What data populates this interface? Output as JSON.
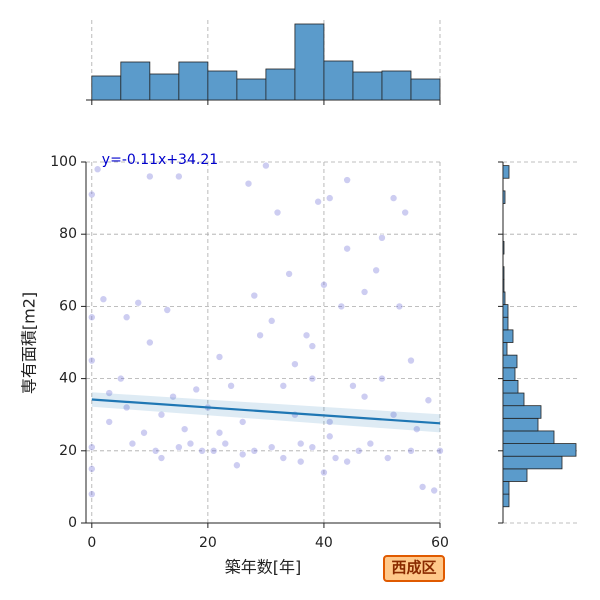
{
  "chart_data": {
    "type": "scatter",
    "xlabel": "築年数[年]",
    "ylabel": "専有面積[m2]",
    "xlim": [
      -1,
      60
    ],
    "ylim": [
      0,
      100
    ],
    "xticks": [
      0,
      20,
      40,
      60
    ],
    "yticks": [
      0,
      20,
      40,
      60,
      80,
      100
    ],
    "grid": true,
    "color": "#6f6fd8",
    "x": [
      1,
      0,
      2,
      0,
      0,
      0,
      0,
      0,
      3,
      3,
      5,
      6,
      6,
      7,
      8,
      9,
      10,
      10,
      11,
      12,
      12,
      13,
      14,
      15,
      16,
      17,
      18,
      19,
      20,
      21,
      22,
      23,
      24,
      25,
      26,
      27,
      28,
      28,
      29,
      30,
      31,
      31,
      32,
      33,
      34,
      35,
      35,
      36,
      37,
      38,
      38,
      39,
      40,
      40,
      41,
      41,
      42,
      43,
      44,
      44,
      45,
      46,
      47,
      48,
      49,
      50,
      50,
      51,
      52,
      52,
      53,
      54,
      55,
      55,
      56,
      57,
      58,
      59,
      60,
      38,
      36,
      15,
      22,
      44,
      47,
      33,
      26,
      41
    ],
    "y": [
      98,
      91,
      62,
      57,
      45,
      21,
      15,
      8,
      36,
      28,
      40,
      57,
      32,
      22,
      61,
      25,
      50,
      96,
      20,
      30,
      18,
      59,
      35,
      96,
      26,
      22,
      37,
      20,
      32,
      20,
      46,
      22,
      38,
      16,
      28,
      94,
      63,
      20,
      52,
      99,
      56,
      21,
      86,
      18,
      69,
      30,
      44,
      17,
      52,
      40,
      21,
      89,
      14,
      66,
      90,
      28,
      18,
      60,
      95,
      76,
      38,
      20,
      64,
      22,
      70,
      79,
      40,
      18,
      90,
      30,
      60,
      86,
      45,
      20,
      26,
      10,
      34,
      9,
      20,
      49,
      22,
      21,
      25,
      17,
      35,
      38,
      19,
      24
    ],
    "regression": {
      "slope": -0.11,
      "intercept": 34.21,
      "label": "y=-0.11x+34.21",
      "color": "#1f77b4"
    },
    "x_hist": {
      "bins": [
        0,
        5,
        10,
        15,
        20,
        25,
        30,
        35,
        40,
        45,
        50,
        55,
        60
      ],
      "counts": [
        24,
        38,
        26,
        38,
        29,
        21,
        31,
        76,
        39,
        28,
        29,
        21
      ],
      "color": "#5b9bcb"
    },
    "y_hist": {
      "bins": [
        4.5,
        8,
        11.5,
        15,
        18.5,
        22,
        25.5,
        29,
        32.5,
        36,
        39.5,
        43,
        46.5,
        50,
        53.5,
        57,
        60.5,
        64,
        67.5,
        71,
        74.5,
        78,
        81.5,
        85,
        88.5,
        92,
        95.5,
        99
      ],
      "counts": [
        6,
        6,
        24,
        59,
        73,
        51,
        35,
        38,
        21,
        15,
        12,
        14,
        4,
        10,
        5,
        5,
        2,
        1,
        1,
        0,
        1,
        0,
        0,
        0,
        2,
        0,
        6
      ],
      "color": "#5b9bcb"
    },
    "annotation": "西成区"
  }
}
